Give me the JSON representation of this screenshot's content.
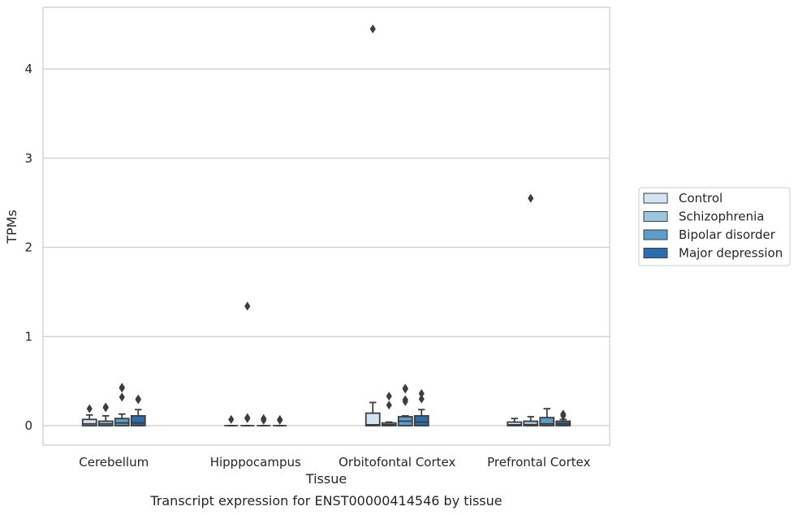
{
  "caption": "Transcript expression for ENST00000414546 by tissue",
  "chart_data": {
    "type": "box",
    "title": "",
    "xlabel": "Tissue",
    "ylabel": "TPMs",
    "ylim": [
      -0.22,
      4.7
    ],
    "yticks": [
      0,
      1,
      2,
      3,
      4
    ],
    "grid": "horizontal",
    "legend_position": "right",
    "categories": [
      "Cerebellum",
      "Hipppocampus",
      "Orbitofontal Cortex",
      "Prefrontal Cortex"
    ],
    "series": [
      {
        "name": "Control",
        "color": "#d2e3f3",
        "boxes": [
          {
            "whislo": 0,
            "q1": 0,
            "med": 0.02,
            "q3": 0.07,
            "whishi": 0.12,
            "fliers": [
              0.19
            ]
          },
          {
            "whislo": 0,
            "q1": 0,
            "med": 0,
            "q3": 0,
            "whishi": 0,
            "fliers": [
              0.07
            ]
          },
          {
            "whislo": 0,
            "q1": 0,
            "med": 0.01,
            "q3": 0.14,
            "whishi": 0.26,
            "fliers": [
              4.45
            ]
          },
          {
            "whislo": 0,
            "q1": 0,
            "med": 0.01,
            "q3": 0.04,
            "whishi": 0.08,
            "fliers": []
          }
        ]
      },
      {
        "name": "Schizophrenia",
        "color": "#9ac8e0",
        "boxes": [
          {
            "whislo": 0,
            "q1": 0,
            "med": 0.02,
            "q3": 0.05,
            "whishi": 0.11,
            "fliers": [
              0.2,
              0.21
            ]
          },
          {
            "whislo": 0,
            "q1": 0,
            "med": 0,
            "q3": 0,
            "whishi": 0,
            "fliers": [
              1.34,
              0.08,
              0.09
            ]
          },
          {
            "whislo": 0,
            "q1": 0,
            "med": 0.01,
            "q3": 0.03,
            "whishi": 0.04,
            "fliers": [
              0.23,
              0.33
            ]
          },
          {
            "whislo": 0,
            "q1": 0,
            "med": 0.01,
            "q3": 0.05,
            "whishi": 0.1,
            "fliers": [
              2.55
            ]
          }
        ]
      },
      {
        "name": "Bipolar disorder",
        "color": "#5a9ec9",
        "boxes": [
          {
            "whislo": 0,
            "q1": 0,
            "med": 0.03,
            "q3": 0.08,
            "whishi": 0.13,
            "fliers": [
              0.32,
              0.42,
              0.43
            ]
          },
          {
            "whislo": 0,
            "q1": 0,
            "med": 0,
            "q3": 0,
            "whishi": 0,
            "fliers": [
              0.06,
              0.08
            ]
          },
          {
            "whislo": 0,
            "q1": 0,
            "med": 0.05,
            "q3": 0.1,
            "whishi": 0.11,
            "fliers": [
              0.27,
              0.29,
              0.41,
              0.42
            ]
          },
          {
            "whislo": 0,
            "q1": 0,
            "med": 0.02,
            "q3": 0.09,
            "whishi": 0.19,
            "fliers": []
          }
        ]
      },
      {
        "name": "Major depression",
        "color": "#2a6eaf",
        "boxes": [
          {
            "whislo": 0,
            "q1": 0,
            "med": 0.03,
            "q3": 0.11,
            "whishi": 0.18,
            "fliers": [
              0.29,
              0.3
            ]
          },
          {
            "whislo": 0,
            "q1": 0,
            "med": 0,
            "q3": 0,
            "whishi": 0,
            "fliers": [
              0.06,
              0.07
            ]
          },
          {
            "whislo": 0,
            "q1": 0,
            "med": 0.04,
            "q3": 0.11,
            "whishi": 0.18,
            "fliers": [
              0.3,
              0.36
            ]
          },
          {
            "whislo": 0,
            "q1": 0,
            "med": 0.02,
            "q3": 0.05,
            "whishi": 0.07,
            "fliers": [
              0.11,
              0.13
            ]
          }
        ]
      }
    ]
  }
}
